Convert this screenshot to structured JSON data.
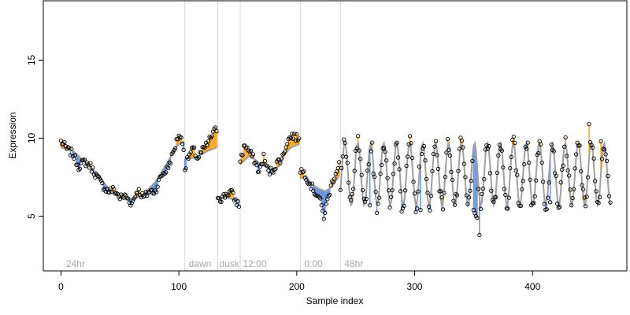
{
  "chart_data": {
    "type": "scatter",
    "title": "",
    "xlabel": "Sample index",
    "ylabel": "Expression",
    "xlim": [
      -15,
      480
    ],
    "ylim": [
      1.5,
      18.8
    ],
    "x_ticks": [
      {
        "value": 0,
        "label": "0"
      },
      {
        "value": 100,
        "label": "100"
      },
      {
        "value": 200,
        "label": "200"
      },
      {
        "value": 300,
        "label": "300"
      },
      {
        "value": 400,
        "label": "400"
      }
    ],
    "y_ticks": [
      {
        "value": 5,
        "label": "5"
      },
      {
        "value": 10,
        "label": "10"
      },
      {
        "value": 15,
        "label": "15"
      }
    ],
    "grid": false,
    "legend": "none",
    "colors": {
      "fitted_line": "#a0a0a0",
      "residual_positive": "#f5a623",
      "residual_negative": "#6f93d8",
      "points_fill": "none",
      "points_stroke": "#000000",
      "phase_lines": "#d9d9d9"
    },
    "phase_boundaries": [
      105,
      133,
      152,
      203,
      237
    ],
    "phase_labels": [
      {
        "x": 3,
        "text": "24hr"
      },
      {
        "x": 107,
        "text": "dawn"
      },
      {
        "x": 133,
        "text": "dusk"
      },
      {
        "x": 153,
        "text": "12:00"
      },
      {
        "x": 205,
        "text": "0:00"
      },
      {
        "x": 239,
        "text": "48hr"
      }
    ],
    "series": [
      {
        "segments": [
          {
            "x_start": 0,
            "x_end": 104,
            "fitted_knots": [
              [
                0,
                9.4
              ],
              [
                10,
                9.2
              ],
              [
                20,
                8.5
              ],
              [
                30,
                7.8
              ],
              [
                40,
                6.8
              ],
              [
                50,
                6.2
              ],
              [
                60,
                6.1
              ],
              [
                70,
                6.4
              ],
              [
                80,
                7.2
              ],
              [
                90,
                8.4
              ],
              [
                98,
                9.5
              ],
              [
                104,
                9.8
              ]
            ],
            "points_knots": [
              [
                0,
                9.8
              ],
              [
                5,
                9.3
              ],
              [
                10,
                9.0
              ],
              [
                15,
                8.2
              ],
              [
                20,
                8.5
              ],
              [
                25,
                8.2
              ],
              [
                30,
                7.6
              ],
              [
                35,
                7.0
              ],
              [
                40,
                6.6
              ],
              [
                45,
                6.7
              ],
              [
                50,
                6.2
              ],
              [
                55,
                6.3
              ],
              [
                60,
                5.8
              ],
              [
                65,
                6.7
              ],
              [
                70,
                6.2
              ],
              [
                75,
                6.6
              ],
              [
                80,
                6.6
              ],
              [
                85,
                7.6
              ],
              [
                90,
                8.0
              ],
              [
                95,
                9.0
              ],
              [
                100,
                10.3
              ],
              [
                104,
                9.5
              ]
            ]
          },
          {
            "x_start": 105,
            "x_end": 132,
            "fitted_knots": [
              [
                105,
                8.7
              ],
              [
                110,
                8.7
              ],
              [
                115,
                8.8
              ],
              [
                120,
                9.0
              ],
              [
                125,
                9.2
              ],
              [
                132,
                9.4
              ]
            ],
            "points_knots": [
              [
                105,
                8.0
              ],
              [
                108,
                8.8
              ],
              [
                112,
                9.3
              ],
              [
                116,
                8.7
              ],
              [
                120,
                9.2
              ],
              [
                124,
                9.6
              ],
              [
                128,
                10.2
              ],
              [
                132,
                10.6
              ]
            ]
          },
          {
            "x_start": 133,
            "x_end": 151,
            "fitted_knots": [
              [
                133,
                6.2
              ],
              [
                140,
                6.2
              ],
              [
                145,
                6.1
              ],
              [
                151,
                6.0
              ]
            ],
            "points_knots": [
              [
                133,
                6.3
              ],
              [
                136,
                6.1
              ],
              [
                140,
                6.4
              ],
              [
                144,
                6.6
              ],
              [
                148,
                6.0
              ],
              [
                151,
                5.7
              ]
            ]
          },
          {
            "x_start": 152,
            "x_end": 202,
            "fitted_knots": [
              [
                152,
                8.3
              ],
              [
                160,
                8.9
              ],
              [
                170,
                8.3
              ],
              [
                175,
                8.2
              ],
              [
                180,
                8.0
              ],
              [
                185,
                8.2
              ],
              [
                190,
                9.0
              ],
              [
                195,
                9.4
              ],
              [
                202,
                9.6
              ]
            ],
            "points_knots": [
              [
                152,
                8.6
              ],
              [
                156,
                9.6
              ],
              [
                160,
                9.1
              ],
              [
                164,
                8.6
              ],
              [
                168,
                7.8
              ],
              [
                172,
                8.8
              ],
              [
                176,
                7.8
              ],
              [
                180,
                8.0
              ],
              [
                184,
                8.5
              ],
              [
                188,
                8.8
              ],
              [
                192,
                9.8
              ],
              [
                196,
                10.2
              ],
              [
                200,
                10.0
              ],
              [
                202,
                10.1
              ]
            ]
          },
          {
            "x_start": 203,
            "x_end": 236,
            "fitted_knots": [
              [
                203,
                7.4
              ],
              [
                208,
                7.6
              ],
              [
                212,
                7.1
              ],
              [
                218,
                6.8
              ],
              [
                224,
                6.6
              ],
              [
                230,
                6.9
              ],
              [
                236,
                7.6
              ]
            ],
            "points_knots": [
              [
                203,
                8.0
              ],
              [
                207,
                7.7
              ],
              [
                211,
                7.1
              ],
              [
                215,
                6.6
              ],
              [
                219,
                6.2
              ],
              [
                223,
                5.0
              ],
              [
                227,
                6.3
              ],
              [
                231,
                7.4
              ],
              [
                236,
                8.4
              ]
            ]
          },
          {
            "x_start": 237,
            "x_end": 466,
            "oscillation": {
              "center": 7.7,
              "amplitude": 2.0,
              "period": 11.0,
              "phase_x": 238
            },
            "point_noise": 0.55,
            "outliers": [
              [
                262,
                5.7
              ],
              [
                289,
                5.3
              ],
              [
                305,
                5.4
              ],
              [
                350,
                5.4
              ],
              [
                351,
                5.2
              ],
              [
                352,
                5.0
              ],
              [
                353,
                4.9
              ],
              [
                355,
                3.8
              ],
              [
                415,
                5.9
              ],
              [
                423,
                5.6
              ],
              [
                448,
                10.9
              ],
              [
                458,
                9.8
              ]
            ]
          }
        ]
      }
    ]
  }
}
